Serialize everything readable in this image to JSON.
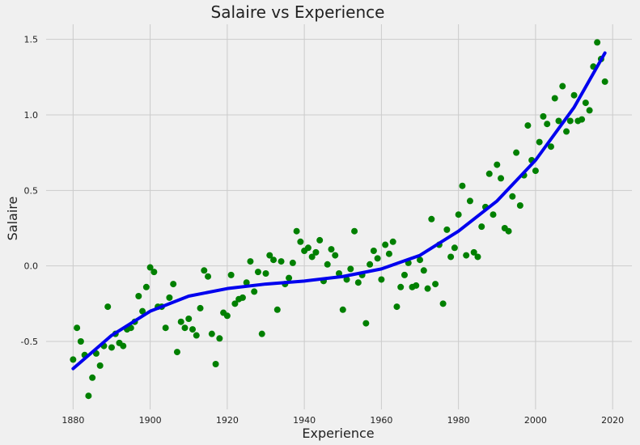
{
  "chart_data": {
    "type": "scatter",
    "title": "Salaire vs Experience",
    "xlabel": "Experience",
    "ylabel": "Salaire",
    "xlim": [
      1873,
      2025
    ],
    "ylim": [
      -0.95,
      1.6
    ],
    "xticks": [
      1880,
      1900,
      1920,
      1940,
      1960,
      1980,
      2000,
      2020
    ],
    "yticks": [
      -0.5,
      0.0,
      0.5,
      1.0,
      1.5
    ],
    "ytick_labels": [
      "-0.5",
      "0.0",
      "0.5",
      "1.0",
      "1.5"
    ],
    "grid": true,
    "point_color": "#008000",
    "line_color": "#0000ee",
    "points": [
      [
        1880,
        -0.62
      ],
      [
        1881,
        -0.41
      ],
      [
        1882,
        -0.5
      ],
      [
        1883,
        -0.59
      ],
      [
        1884,
        -0.86
      ],
      [
        1885,
        -0.74
      ],
      [
        1886,
        -0.58
      ],
      [
        1887,
        -0.66
      ],
      [
        1888,
        -0.53
      ],
      [
        1889,
        -0.27
      ],
      [
        1890,
        -0.54
      ],
      [
        1891,
        -0.45
      ],
      [
        1892,
        -0.51
      ],
      [
        1893,
        -0.53
      ],
      [
        1894,
        -0.42
      ],
      [
        1895,
        -0.41
      ],
      [
        1896,
        -0.37
      ],
      [
        1897,
        -0.2
      ],
      [
        1898,
        -0.3
      ],
      [
        1899,
        -0.14
      ],
      [
        1900,
        -0.01
      ],
      [
        1901,
        -0.04
      ],
      [
        1902,
        -0.27
      ],
      [
        1903,
        -0.27
      ],
      [
        1904,
        -0.41
      ],
      [
        1905,
        -0.21
      ],
      [
        1906,
        -0.12
      ],
      [
        1907,
        -0.57
      ],
      [
        1908,
        -0.37
      ],
      [
        1909,
        -0.41
      ],
      [
        1910,
        -0.35
      ],
      [
        1911,
        -0.42
      ],
      [
        1912,
        -0.46
      ],
      [
        1913,
        -0.28
      ],
      [
        1914,
        -0.03
      ],
      [
        1915,
        -0.07
      ],
      [
        1916,
        -0.45
      ],
      [
        1917,
        -0.65
      ],
      [
        1918,
        -0.48
      ],
      [
        1919,
        -0.31
      ],
      [
        1920,
        -0.33
      ],
      [
        1921,
        -0.06
      ],
      [
        1922,
        -0.25
      ],
      [
        1923,
        -0.22
      ],
      [
        1924,
        -0.21
      ],
      [
        1925,
        -0.11
      ],
      [
        1926,
        0.03
      ],
      [
        1927,
        -0.17
      ],
      [
        1928,
        -0.04
      ],
      [
        1929,
        -0.45
      ],
      [
        1930,
        -0.05
      ],
      [
        1931,
        0.07
      ],
      [
        1932,
        0.04
      ],
      [
        1933,
        -0.29
      ],
      [
        1934,
        0.03
      ],
      [
        1935,
        -0.12
      ],
      [
        1936,
        -0.08
      ],
      [
        1937,
        0.02
      ],
      [
        1938,
        0.23
      ],
      [
        1939,
        0.16
      ],
      [
        1940,
        0.1
      ],
      [
        1941,
        0.12
      ],
      [
        1942,
        0.06
      ],
      [
        1943,
        0.09
      ],
      [
        1944,
        0.17
      ],
      [
        1945,
        -0.1
      ],
      [
        1946,
        0.01
      ],
      [
        1947,
        0.11
      ],
      [
        1948,
        0.07
      ],
      [
        1949,
        -0.05
      ],
      [
        1950,
        -0.29
      ],
      [
        1951,
        -0.09
      ],
      [
        1952,
        -0.02
      ],
      [
        1953,
        0.23
      ],
      [
        1954,
        -0.11
      ],
      [
        1955,
        -0.06
      ],
      [
        1956,
        -0.38
      ],
      [
        1957,
        0.01
      ],
      [
        1958,
        0.1
      ],
      [
        1959,
        0.05
      ],
      [
        1960,
        -0.09
      ],
      [
        1961,
        0.14
      ],
      [
        1962,
        0.08
      ],
      [
        1963,
        0.16
      ],
      [
        1964,
        -0.27
      ],
      [
        1965,
        -0.14
      ],
      [
        1966,
        -0.06
      ],
      [
        1967,
        0.02
      ],
      [
        1968,
        -0.14
      ],
      [
        1969,
        -0.13
      ],
      [
        1970,
        0.04
      ],
      [
        1971,
        -0.03
      ],
      [
        1972,
        -0.15
      ],
      [
        1973,
        0.31
      ],
      [
        1974,
        -0.12
      ],
      [
        1975,
        0.14
      ],
      [
        1976,
        -0.25
      ],
      [
        1977,
        0.24
      ],
      [
        1978,
        0.06
      ],
      [
        1979,
        0.12
      ],
      [
        1980,
        0.34
      ],
      [
        1981,
        0.53
      ],
      [
        1982,
        0.07
      ],
      [
        1983,
        0.43
      ],
      [
        1984,
        0.09
      ],
      [
        1985,
        0.06
      ],
      [
        1986,
        0.26
      ],
      [
        1987,
        0.39
      ],
      [
        1988,
        0.61
      ],
      [
        1989,
        0.34
      ],
      [
        1990,
        0.67
      ],
      [
        1991,
        0.58
      ],
      [
        1992,
        0.25
      ],
      [
        1993,
        0.23
      ],
      [
        1994,
        0.46
      ],
      [
        1995,
        0.75
      ],
      [
        1996,
        0.4
      ],
      [
        1997,
        0.6
      ],
      [
        1998,
        0.93
      ],
      [
        1999,
        0.7
      ],
      [
        2000,
        0.63
      ],
      [
        2001,
        0.82
      ],
      [
        2002,
        0.99
      ],
      [
        2003,
        0.94
      ],
      [
        2004,
        0.79
      ],
      [
        2005,
        1.11
      ],
      [
        2006,
        0.96
      ],
      [
        2007,
        1.19
      ],
      [
        2008,
        0.89
      ],
      [
        2009,
        0.96
      ],
      [
        2010,
        1.13
      ],
      [
        2011,
        0.96
      ],
      [
        2012,
        0.97
      ],
      [
        2013,
        1.08
      ],
      [
        2014,
        1.03
      ],
      [
        2015,
        1.32
      ],
      [
        2016,
        1.48
      ],
      [
        2017,
        1.37
      ],
      [
        2018,
        1.22
      ]
    ],
    "fit_line": {
      "x": [
        1880,
        1890,
        1900,
        1910,
        1920,
        1930,
        1940,
        1950,
        1960,
        1970,
        1980,
        1990,
        2000,
        2010,
        2018
      ],
      "y": [
        -0.68,
        -0.46,
        -0.3,
        -0.2,
        -0.15,
        -0.12,
        -0.1,
        -0.07,
        -0.02,
        0.07,
        0.23,
        0.43,
        0.7,
        1.05,
        1.41
      ]
    }
  }
}
